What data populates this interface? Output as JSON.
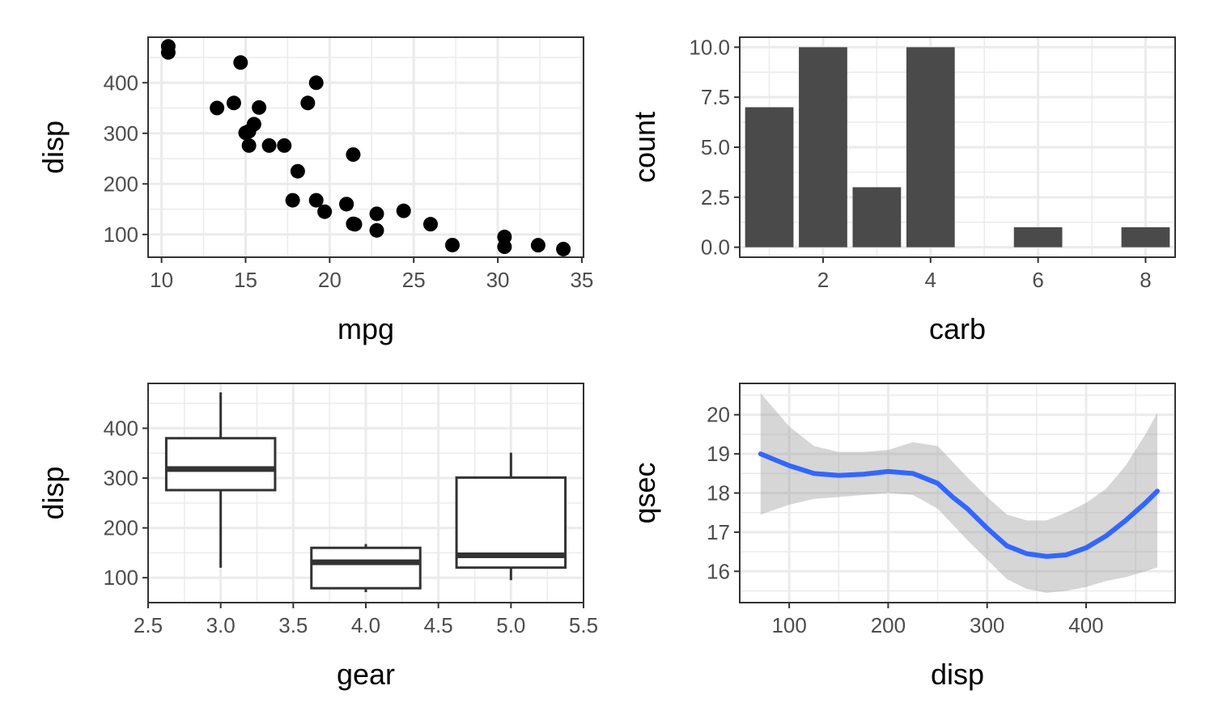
{
  "chart_data": [
    {
      "type": "scatter",
      "xlabel": "mpg",
      "ylabel": "disp",
      "xlim": [
        9.2,
        35.1
      ],
      "ylim": [
        55,
        490
      ],
      "xticks": [
        10,
        15,
        20,
        25,
        30,
        35
      ],
      "yticks": [
        100,
        200,
        300,
        400
      ],
      "grid": true,
      "points": [
        {
          "x": 21.0,
          "y": 160
        },
        {
          "x": 21.0,
          "y": 160
        },
        {
          "x": 22.8,
          "y": 108
        },
        {
          "x": 21.4,
          "y": 258
        },
        {
          "x": 18.7,
          "y": 360
        },
        {
          "x": 18.1,
          "y": 225
        },
        {
          "x": 14.3,
          "y": 360
        },
        {
          "x": 24.4,
          "y": 146.7
        },
        {
          "x": 22.8,
          "y": 140.8
        },
        {
          "x": 19.2,
          "y": 167.6
        },
        {
          "x": 17.8,
          "y": 167.6
        },
        {
          "x": 16.4,
          "y": 275.8
        },
        {
          "x": 17.3,
          "y": 275.8
        },
        {
          "x": 15.2,
          "y": 275.8
        },
        {
          "x": 10.4,
          "y": 472
        },
        {
          "x": 10.4,
          "y": 460
        },
        {
          "x": 14.7,
          "y": 440
        },
        {
          "x": 32.4,
          "y": 78.7
        },
        {
          "x": 30.4,
          "y": 75.7
        },
        {
          "x": 33.9,
          "y": 71.1
        },
        {
          "x": 21.5,
          "y": 120.1
        },
        {
          "x": 15.5,
          "y": 318
        },
        {
          "x": 15.2,
          "y": 304
        },
        {
          "x": 13.3,
          "y": 350
        },
        {
          "x": 19.2,
          "y": 400
        },
        {
          "x": 27.3,
          "y": 79
        },
        {
          "x": 26.0,
          "y": 120.3
        },
        {
          "x": 30.4,
          "y": 95.1
        },
        {
          "x": 15.8,
          "y": 351
        },
        {
          "x": 19.7,
          "y": 145
        },
        {
          "x": 15.0,
          "y": 301
        },
        {
          "x": 21.4,
          "y": 121
        }
      ]
    },
    {
      "type": "bar",
      "xlabel": "carb",
      "ylabel": "count",
      "xlim": [
        0.45,
        8.55
      ],
      "ylim": [
        -0.5,
        10.5
      ],
      "xticks": [
        2,
        4,
        6,
        8
      ],
      "yticks": [
        "0.0",
        "2.5",
        "5.0",
        "7.5",
        "10.0"
      ],
      "grid": true,
      "categories": [
        1,
        2,
        3,
        4,
        6,
        8
      ],
      "values": [
        7,
        10,
        3,
        10,
        1,
        1
      ],
      "color": "#4a4a4a"
    },
    {
      "type": "boxplot",
      "xlabel": "gear",
      "ylabel": "disp",
      "xlim": [
        2.5,
        5.5
      ],
      "ylim": [
        50,
        490
      ],
      "xticks": [
        "2.5",
        "3.0",
        "3.5",
        "4.0",
        "4.5",
        "5.0",
        "5.5"
      ],
      "yticks": [
        100,
        200,
        300,
        400
      ],
      "grid": true,
      "boxes": [
        {
          "x": 3,
          "whisker_low": 120.1,
          "q1": 275.8,
          "median": 318,
          "q3": 380,
          "whisker_high": 472
        },
        {
          "x": 4,
          "whisker_low": 71.1,
          "q1": 78.9,
          "median": 130.9,
          "q3": 160,
          "whisker_high": 167.6
        },
        {
          "x": 5,
          "whisker_low": 95.1,
          "q1": 120.3,
          "median": 145,
          "q3": 301,
          "whisker_high": 351
        }
      ]
    },
    {
      "type": "line",
      "xlabel": "disp",
      "ylabel": "qsec",
      "xlim": [
        50,
        490
      ],
      "ylim": [
        15.2,
        20.8
      ],
      "xticks": [
        100,
        200,
        300,
        400
      ],
      "yticks": [
        16,
        17,
        18,
        19,
        20
      ],
      "grid": true,
      "series": [
        {
          "color": "#3366ff",
          "x": [
            71.1,
            100,
            125,
            150,
            175,
            200,
            225,
            250,
            265,
            280,
            300,
            320,
            340,
            360,
            380,
            400,
            420,
            440,
            460,
            472
          ],
          "y": [
            19.0,
            18.7,
            18.5,
            18.45,
            18.48,
            18.55,
            18.5,
            18.25,
            17.9,
            17.6,
            17.1,
            16.65,
            16.45,
            16.38,
            16.42,
            16.6,
            16.9,
            17.3,
            17.75,
            18.05
          ],
          "band_low": [
            17.45,
            17.7,
            17.85,
            17.9,
            17.95,
            18.0,
            17.95,
            17.6,
            17.2,
            16.8,
            16.3,
            15.8,
            15.55,
            15.45,
            15.5,
            15.6,
            15.75,
            15.85,
            16.0,
            16.1
          ],
          "band_high": [
            20.55,
            19.7,
            19.2,
            19.05,
            19.05,
            19.1,
            19.3,
            19.2,
            18.8,
            18.4,
            17.9,
            17.45,
            17.3,
            17.3,
            17.5,
            17.75,
            18.1,
            18.7,
            19.5,
            20.05
          ],
          "band_color": "#999999"
        }
      ]
    }
  ]
}
